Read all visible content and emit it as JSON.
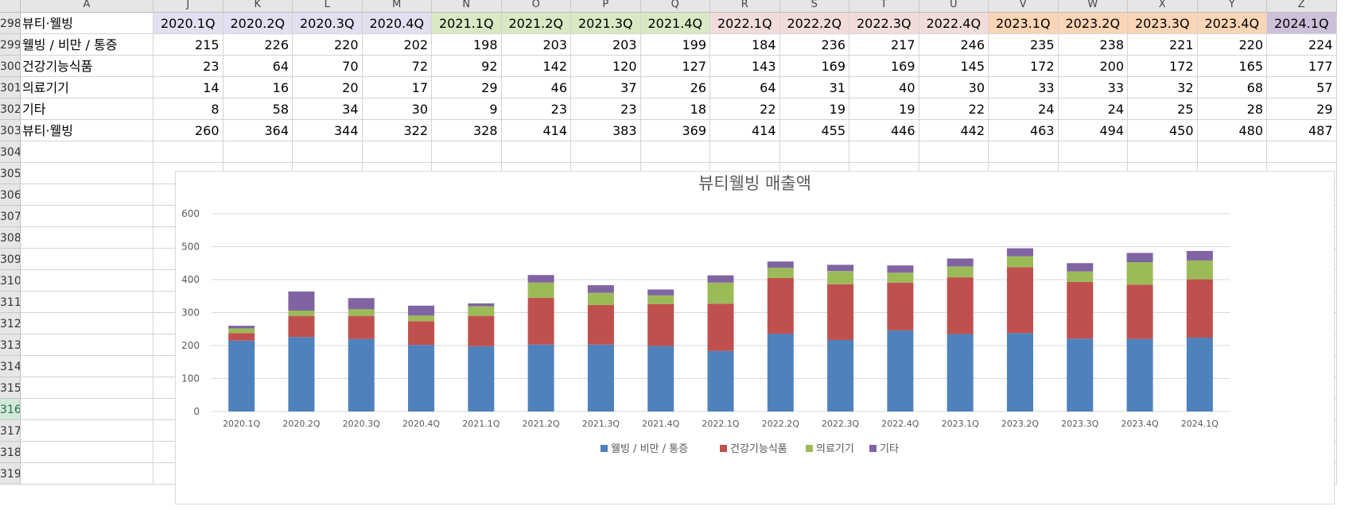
{
  "spreadsheet": {
    "columns": [
      "A",
      "J",
      "K",
      "L",
      "M",
      "N",
      "O",
      "P",
      "Q",
      "R",
      "S",
      "T",
      "U",
      "V",
      "W",
      "X",
      "Y",
      "Z"
    ],
    "rows": [
      "298",
      "299",
      "300",
      "301",
      "302",
      "303",
      "304",
      "305",
      "306",
      "307",
      "308",
      "309",
      "310",
      "311",
      "312",
      "313",
      "314",
      "315",
      "316",
      "317",
      "318",
      "319"
    ],
    "active_row": "316",
    "header_label": "뷰티·웰빙",
    "quarters": [
      "2020.1Q",
      "2020.2Q",
      "2020.3Q",
      "2020.4Q",
      "2021.1Q",
      "2021.2Q",
      "2021.3Q",
      "2021.4Q",
      "2022.1Q",
      "2022.2Q",
      "2022.3Q",
      "2022.4Q",
      "2023.1Q",
      "2023.2Q",
      "2023.3Q",
      "2023.4Q",
      "2024.1Q"
    ],
    "quarter_colors": [
      "#e3dff0",
      "#e3dff0",
      "#e3dff0",
      "#e3dff0",
      "#d8e9c4",
      "#d8e9c4",
      "#d8e9c4",
      "#d8e9c4",
      "#f2dcdb",
      "#f2dcdb",
      "#f2dcdb",
      "#f2dcdb",
      "#fbd5b5",
      "#fbd5b5",
      "#fbd5b5",
      "#fbd5b5",
      "#ccc0da"
    ],
    "data_rows": [
      {
        "label": "웰빙 / 비만 / 통증",
        "values": [
          215,
          226,
          220,
          202,
          198,
          203,
          203,
          199,
          184,
          236,
          217,
          246,
          235,
          238,
          221,
          220,
          224
        ]
      },
      {
        "label": "건강기능식품",
        "values": [
          23,
          64,
          70,
          72,
          92,
          142,
          120,
          127,
          143,
          169,
          169,
          145,
          172,
          200,
          172,
          165,
          177
        ]
      },
      {
        "label": "의료기기",
        "values": [
          14,
          16,
          20,
          17,
          29,
          46,
          37,
          26,
          64,
          31,
          40,
          30,
          33,
          33,
          32,
          68,
          57
        ]
      },
      {
        "label": "기타",
        "values": [
          8,
          58,
          34,
          30,
          9,
          23,
          23,
          18,
          22,
          19,
          19,
          22,
          24,
          24,
          25,
          28,
          29
        ]
      },
      {
        "label": "뷰티·웰빙",
        "values": [
          260,
          364,
          344,
          322,
          328,
          414,
          383,
          369,
          414,
          455,
          446,
          442,
          463,
          494,
          450,
          480,
          487
        ]
      }
    ]
  },
  "chart_data": {
    "type": "bar",
    "stacked": true,
    "title": "뷰티웰빙 매출액",
    "categories": [
      "2020.1Q",
      "2020.2Q",
      "2020.3Q",
      "2020.4Q",
      "2021.1Q",
      "2021.2Q",
      "2021.3Q",
      "2021.4Q",
      "2022.1Q",
      "2022.2Q",
      "2022.3Q",
      "2022.4Q",
      "2023.1Q",
      "2023.2Q",
      "2023.3Q",
      "2023.4Q",
      "2024.1Q"
    ],
    "series": [
      {
        "name": "웰빙 / 비만 / 통증",
        "color": "#4f81bd",
        "values": [
          215,
          226,
          220,
          202,
          198,
          203,
          203,
          199,
          184,
          236,
          217,
          246,
          235,
          238,
          221,
          220,
          224
        ]
      },
      {
        "name": "건강기능식품",
        "color": "#c0504d",
        "values": [
          23,
          64,
          70,
          72,
          92,
          142,
          120,
          127,
          143,
          169,
          169,
          145,
          172,
          200,
          172,
          165,
          177
        ]
      },
      {
        "name": "의료기기",
        "color": "#9bbb59",
        "values": [
          14,
          16,
          20,
          17,
          29,
          46,
          37,
          26,
          64,
          31,
          40,
          30,
          33,
          33,
          32,
          68,
          57
        ]
      },
      {
        "name": "기타",
        "color": "#8064a2",
        "values": [
          8,
          58,
          34,
          30,
          9,
          23,
          23,
          18,
          22,
          19,
          19,
          22,
          24,
          24,
          25,
          28,
          29
        ]
      }
    ],
    "yticks": [
      "0",
      "100",
      "200",
      "300",
      "400",
      "500",
      "600"
    ],
    "ylim": [
      0,
      600
    ],
    "grid": true,
    "legend": "bottom"
  }
}
